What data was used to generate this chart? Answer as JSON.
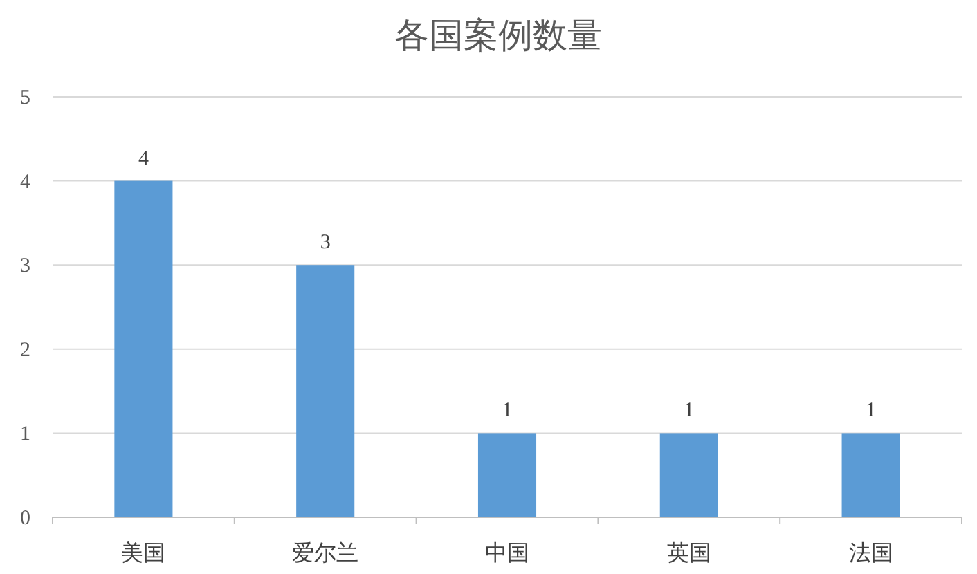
{
  "chart_data": {
    "type": "bar",
    "title": "各国案例数量",
    "categories": [
      "美国",
      "爱尔兰",
      "中国",
      "英国",
      "法国"
    ],
    "values": [
      4,
      3,
      1,
      1,
      1
    ],
    "color": "#5b9bd5",
    "ylim": [
      0,
      5
    ],
    "yticks": [
      0,
      1,
      2,
      3,
      4,
      5
    ],
    "grid": "y",
    "data_labels": true
  }
}
